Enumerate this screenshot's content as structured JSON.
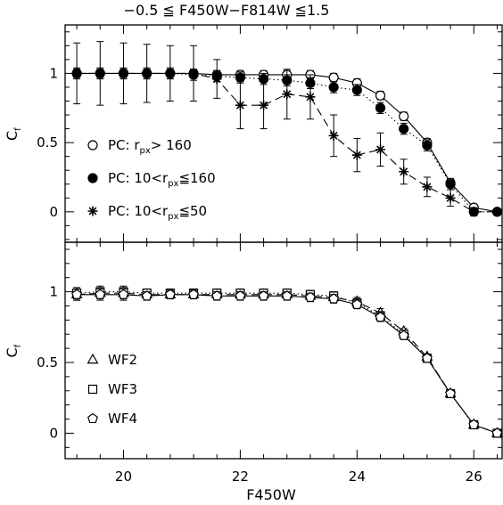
{
  "chart_data": {
    "type": "scatter",
    "title": "−0.5 ≦ F450W−F814W ≦1.5",
    "xlabel": "F450W",
    "x_ticks": [
      "20",
      "22",
      "24",
      "26"
    ],
    "xlim": [
      19.0,
      26.5
    ],
    "panels": [
      {
        "name": "top",
        "ylabel_main": "C",
        "ylabel_sub": "f",
        "ylim": [
          -0.22,
          1.35
        ],
        "y_ticks": [
          "0",
          "0.5",
          "1"
        ],
        "legend_position": "lower-left",
        "series": [
          {
            "name_main": "PC: r",
            "name_sub": "px",
            "name_rest": "> 160",
            "marker": "open-circle",
            "line": "solid",
            "x": [
              19.2,
              19.6,
              20.0,
              20.4,
              20.8,
              21.2,
              21.6,
              22.0,
              22.4,
              22.8,
              23.2,
              23.6,
              24.0,
              24.4,
              24.8,
              25.2,
              25.6,
              26.0,
              26.4
            ],
            "y": [
              1.0,
              1.0,
              1.0,
              1.0,
              1.0,
              1.0,
              0.99,
              0.99,
              0.99,
              0.99,
              0.99,
              0.97,
              0.93,
              0.84,
              0.69,
              0.5,
              0.21,
              0.03,
              0.0
            ],
            "err": [
              0.03,
              0.03,
              0.03,
              0.03,
              0.03,
              0.03,
              0.03,
              0.03,
              0.03,
              0.03,
              0.03,
              0.03,
              0.03,
              0.03,
              0.03,
              0.03,
              0.03,
              0.02,
              0.0
            ]
          },
          {
            "name_main": "PC: 10<r",
            "name_sub": "px",
            "name_rest": "≦160",
            "marker": "filled-circle",
            "line": "dotted",
            "x": [
              19.2,
              19.6,
              20.0,
              20.4,
              20.8,
              21.2,
              21.6,
              22.0,
              22.4,
              22.8,
              23.2,
              23.6,
              24.0,
              24.4,
              24.8,
              25.2,
              25.6,
              26.0,
              26.4
            ],
            "y": [
              1.0,
              1.0,
              1.0,
              1.0,
              1.0,
              0.99,
              0.98,
              0.97,
              0.96,
              0.95,
              0.93,
              0.9,
              0.88,
              0.75,
              0.6,
              0.48,
              0.2,
              0.0,
              0.0
            ],
            "err": [
              0.04,
              0.04,
              0.04,
              0.04,
              0.04,
              0.04,
              0.04,
              0.04,
              0.04,
              0.04,
              0.04,
              0.04,
              0.04,
              0.04,
              0.04,
              0.04,
              0.04,
              0.02,
              0.0
            ]
          },
          {
            "name_main": "PC: 10<r",
            "name_sub": "px",
            "name_rest": "≦50",
            "marker": "asterisk",
            "line": "dashed",
            "x": [
              19.2,
              19.6,
              20.0,
              20.4,
              20.8,
              21.2,
              21.6,
              22.0,
              22.4,
              22.8,
              23.2,
              23.6,
              24.0,
              24.4,
              24.8,
              25.2,
              25.6,
              26.0,
              26.4
            ],
            "y": [
              1.0,
              1.0,
              1.0,
              1.0,
              1.0,
              1.0,
              0.96,
              0.77,
              0.77,
              0.85,
              0.83,
              0.55,
              0.41,
              0.45,
              0.29,
              0.18,
              0.1,
              0.0,
              0.0
            ],
            "err": [
              0.22,
              0.23,
              0.22,
              0.21,
              0.2,
              0.2,
              0.14,
              0.17,
              0.17,
              0.18,
              0.16,
              0.15,
              0.12,
              0.12,
              0.09,
              0.07,
              0.06,
              0.03,
              0.0
            ]
          }
        ]
      },
      {
        "name": "bottom",
        "ylabel_main": "C",
        "ylabel_sub": "f",
        "ylim": [
          -0.18,
          1.35
        ],
        "y_ticks": [
          "0",
          "0.5",
          "1"
        ],
        "legend_position": "lower-left",
        "series": [
          {
            "name_main": "WF2",
            "marker": "triangle",
            "line": "dashed",
            "x": [
              19.2,
              19.6,
              20.0,
              20.4,
              20.8,
              21.2,
              21.6,
              22.0,
              22.4,
              22.8,
              23.2,
              23.6,
              24.0,
              24.4,
              24.8,
              25.2,
              25.6,
              26.0,
              26.4
            ],
            "y": [
              0.98,
              0.99,
              0.99,
              0.98,
              0.98,
              0.98,
              0.98,
              0.98,
              0.98,
              0.98,
              0.97,
              0.96,
              0.93,
              0.85,
              0.72,
              0.54,
              0.28,
              0.06,
              0.0
            ],
            "err": [
              0.04,
              0.04,
              0.04,
              0.03,
              0.03,
              0.03,
              0.03,
              0.03,
              0.03,
              0.03,
              0.03,
              0.03,
              0.03,
              0.03,
              0.02,
              0.02,
              0.0,
              0.0,
              0.0
            ]
          },
          {
            "name_main": "WF3",
            "marker": "square",
            "line": "dotted",
            "x": [
              19.2,
              19.6,
              20.0,
              20.4,
              20.8,
              21.2,
              21.6,
              22.0,
              22.4,
              22.8,
              23.2,
              23.6,
              24.0,
              24.4,
              24.8,
              25.2,
              25.6,
              26.0,
              26.4
            ],
            "y": [
              0.99,
              1.0,
              1.0,
              0.99,
              0.99,
              0.99,
              0.99,
              0.99,
              0.99,
              0.99,
              0.98,
              0.97,
              0.92,
              0.83,
              0.7,
              0.53,
              0.28,
              0.06,
              0.0
            ],
            "err": [
              0.04,
              0.04,
              0.04,
              0.03,
              0.03,
              0.03,
              0.03,
              0.03,
              0.03,
              0.03,
              0.03,
              0.03,
              0.03,
              0.03,
              0.02,
              0.02,
              0.0,
              0.0,
              0.0
            ]
          },
          {
            "name_main": "WF4",
            "marker": "pentagon",
            "line": "solid",
            "x": [
              19.2,
              19.6,
              20.0,
              20.4,
              20.8,
              21.2,
              21.6,
              22.0,
              22.4,
              22.8,
              23.2,
              23.6,
              24.0,
              24.4,
              24.8,
              25.2,
              25.6,
              26.0,
              26.4
            ],
            "y": [
              0.98,
              0.98,
              0.98,
              0.97,
              0.98,
              0.98,
              0.97,
              0.97,
              0.97,
              0.97,
              0.96,
              0.95,
              0.91,
              0.82,
              0.69,
              0.53,
              0.28,
              0.06,
              0.0
            ],
            "err": [
              0.04,
              0.04,
              0.04,
              0.03,
              0.03,
              0.03,
              0.03,
              0.03,
              0.03,
              0.03,
              0.03,
              0.03,
              0.03,
              0.03,
              0.02,
              0.02,
              0.0,
              0.0,
              0.0
            ]
          }
        ]
      }
    ]
  }
}
